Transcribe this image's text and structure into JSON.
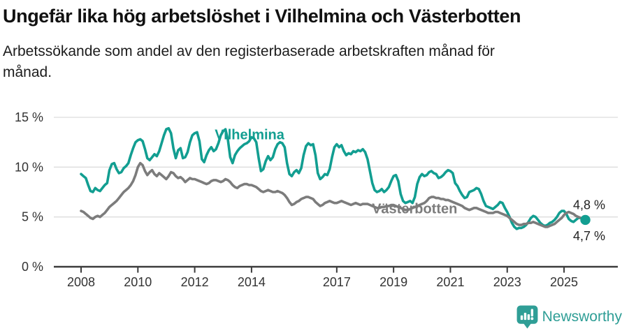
{
  "header": {
    "title": "Ungefär lika hög arbetslöshet i Vilhelmina och Västerbotten",
    "subtitle": "Arbetssökande som andel av den registerbaserade arbetskraften månad för\nmånad."
  },
  "footer": {
    "logo_text": "Newsworthy",
    "logo_color": "#2f9e96"
  },
  "chart_data": {
    "type": "line",
    "title": "Ungefär lika hög arbetslöshet i Vilhelmina och Västerbotten",
    "subtitle": "Arbetssökande som andel av den registerbaserade arbetskraften månad för månad.",
    "x_start": 2008.0,
    "x_step": 0.0833333,
    "x_unit": "decimal year, monthly data Jan 2008 - Oct 2025",
    "ylim": [
      0,
      15.5
    ],
    "xlim": [
      2007.05,
      2026.9
    ],
    "grid": "horizontal",
    "legend": "inline-labels",
    "yticks": [
      {
        "value": 0,
        "label": "0 %"
      },
      {
        "value": 5,
        "label": "5 %"
      },
      {
        "value": 10,
        "label": "10 %"
      },
      {
        "value": 15,
        "label": "15 %"
      }
    ],
    "xticks": [
      {
        "value": 2008,
        "label": "2008"
      },
      {
        "value": 2010,
        "label": "2010"
      },
      {
        "value": 2012,
        "label": "2012"
      },
      {
        "value": 2014,
        "label": "2014"
      },
      {
        "value": 2017,
        "label": "2017"
      },
      {
        "value": 2019,
        "label": "2019"
      },
      {
        "value": 2021,
        "label": "2021"
      },
      {
        "value": 2023,
        "label": "2023"
      },
      {
        "value": 2025,
        "label": "2025"
      }
    ],
    "series": [
      {
        "name": "Vilhelmina",
        "color": "#129e91",
        "end_label": "4,7 %",
        "end_label_pos": "below",
        "last_value_pct": 4.7,
        "has_end_dot": true,
        "label_anchor": {
          "x_year": 2013.93,
          "y_pct": 12.8
        },
        "values": [
          9.3,
          9.1,
          8.9,
          8.2,
          7.6,
          7.5,
          7.9,
          7.7,
          7.6,
          7.9,
          8.2,
          8.4,
          9.7,
          10.3,
          10.4,
          9.8,
          9.4,
          9.5,
          9.9,
          10.1,
          10.4,
          11.2,
          11.9,
          12.5,
          12.7,
          12.8,
          12.6,
          11.8,
          10.9,
          10.7,
          11.0,
          11.3,
          11.1,
          11.6,
          12.4,
          13.2,
          13.8,
          13.9,
          13.4,
          11.9,
          10.9,
          11.7,
          11.9,
          10.9,
          11.0,
          11.5,
          12.5,
          13.2,
          13.4,
          13.5,
          12.6,
          10.8,
          10.5,
          11.2,
          11.7,
          12.0,
          11.6,
          11.8,
          12.4,
          13.2,
          13.6,
          13.8,
          12.8,
          11.0,
          10.4,
          11.2,
          11.6,
          11.9,
          12.1,
          12.3,
          12.4,
          12.6,
          13.0,
          12.9,
          12.5,
          10.9,
          9.6,
          9.8,
          10.6,
          11.1,
          10.7,
          11.0,
          11.8,
          12.3,
          12.5,
          12.4,
          12.0,
          10.4,
          9.3,
          9.1,
          9.5,
          9.7,
          9.4,
          9.9,
          11.2,
          12.1,
          12.4,
          12.2,
          12.3,
          11.2,
          9.4,
          8.8,
          9.0,
          9.3,
          9.2,
          9.8,
          11.0,
          12.0,
          12.3,
          12.0,
          12.2,
          11.6,
          11.2,
          11.4,
          11.3,
          11.6,
          11.5,
          11.7,
          11.6,
          11.8,
          11.5,
          10.8,
          9.6,
          8.4,
          7.7,
          7.5,
          7.6,
          7.8,
          7.5,
          7.7,
          8.0,
          8.6,
          9.1,
          9.2,
          8.6,
          7.3,
          6.6,
          6.4,
          6.5,
          6.6,
          6.4,
          7.0,
          8.3,
          9.0,
          9.3,
          9.1,
          9.2,
          9.5,
          9.6,
          9.4,
          9.3,
          8.9,
          9.0,
          9.2,
          9.5,
          9.7,
          9.6,
          9.4,
          8.4,
          8.1,
          7.6,
          7.2,
          6.9,
          7.0,
          7.5,
          7.6,
          7.7,
          7.9,
          7.8,
          7.3,
          6.6,
          6.1,
          6.0,
          5.9,
          5.8,
          6.0,
          6.2,
          6.5,
          6.4,
          5.9,
          5.5,
          5.0,
          4.4,
          4.0,
          3.8,
          3.9,
          3.9,
          4.0,
          4.2,
          4.5,
          4.9,
          5.1,
          5.0,
          4.7,
          4.4,
          4.2,
          4.1,
          4.2,
          4.4,
          4.5,
          4.7,
          5.0,
          5.4,
          5.6,
          5.6,
          5.3,
          4.8,
          4.6,
          4.5,
          4.7,
          4.9,
          4.9,
          4.8,
          4.7
        ]
      },
      {
        "name": "Västerbotten",
        "color": "#7c7c7c",
        "end_label": "4,8 %",
        "end_label_pos": "above",
        "last_value_pct": 4.8,
        "has_end_dot": false,
        "label_anchor": {
          "x_year": 2019.74,
          "y_pct": 5.35
        },
        "values": [
          5.6,
          5.5,
          5.3,
          5.1,
          4.9,
          4.8,
          5.0,
          5.1,
          5.0,
          5.2,
          5.4,
          5.7,
          6.0,
          6.2,
          6.4,
          6.6,
          6.9,
          7.2,
          7.5,
          7.7,
          7.9,
          8.2,
          8.6,
          9.2,
          10.0,
          10.4,
          10.2,
          9.6,
          9.2,
          9.5,
          9.7,
          9.3,
          9.1,
          9.4,
          9.2,
          9.0,
          8.8,
          9.1,
          9.5,
          9.4,
          9.1,
          8.9,
          9.0,
          8.8,
          8.5,
          8.7,
          8.9,
          8.8,
          8.8,
          8.7,
          8.6,
          8.5,
          8.4,
          8.3,
          8.4,
          8.6,
          8.7,
          8.7,
          8.6,
          8.5,
          8.6,
          8.8,
          8.7,
          8.5,
          8.2,
          8.0,
          7.9,
          8.1,
          8.2,
          8.3,
          8.3,
          8.2,
          8.2,
          8.1,
          8.0,
          7.8,
          7.6,
          7.5,
          7.6,
          7.7,
          7.6,
          7.5,
          7.5,
          7.6,
          7.5,
          7.4,
          7.2,
          6.9,
          6.5,
          6.2,
          6.3,
          6.5,
          6.6,
          6.8,
          6.9,
          7.0,
          7.0,
          6.9,
          6.8,
          6.5,
          6.3,
          6.1,
          6.2,
          6.4,
          6.5,
          6.6,
          6.5,
          6.4,
          6.4,
          6.5,
          6.6,
          6.5,
          6.4,
          6.3,
          6.2,
          6.3,
          6.4,
          6.3,
          6.2,
          6.3,
          6.3,
          6.3,
          6.2,
          6.1,
          6.0,
          5.9,
          5.9,
          6.0,
          6.0,
          6.1,
          6.1,
          6.2,
          6.2,
          6.1,
          6.0,
          5.9,
          5.8,
          5.7,
          5.7,
          5.8,
          5.9,
          6.0,
          6.1,
          6.2,
          6.3,
          6.4,
          6.6,
          6.9,
          7.0,
          7.0,
          6.9,
          6.9,
          6.8,
          6.8,
          6.7,
          6.7,
          6.6,
          6.5,
          6.4,
          6.3,
          6.2,
          6.1,
          5.9,
          5.8,
          5.7,
          5.8,
          5.9,
          5.9,
          5.8,
          5.7,
          5.6,
          5.5,
          5.4,
          5.4,
          5.4,
          5.5,
          5.5,
          5.4,
          5.3,
          5.2,
          5.1,
          4.9,
          4.7,
          4.5,
          4.3,
          4.2,
          4.2,
          4.3,
          4.3,
          4.4,
          4.4,
          4.5,
          4.4,
          4.3,
          4.2,
          4.1,
          4.0,
          4.0,
          4.1,
          4.2,
          4.3,
          4.5,
          4.7,
          4.9,
          5.2,
          5.4,
          5.5,
          5.4,
          5.3,
          5.1,
          5.0,
          4.9,
          4.8,
          4.8
        ]
      }
    ],
    "colors": {
      "grid": "#dcdcdc",
      "axis": "#3b3b3b",
      "tick_label": "#333333",
      "end_label_text": "#222222"
    }
  }
}
